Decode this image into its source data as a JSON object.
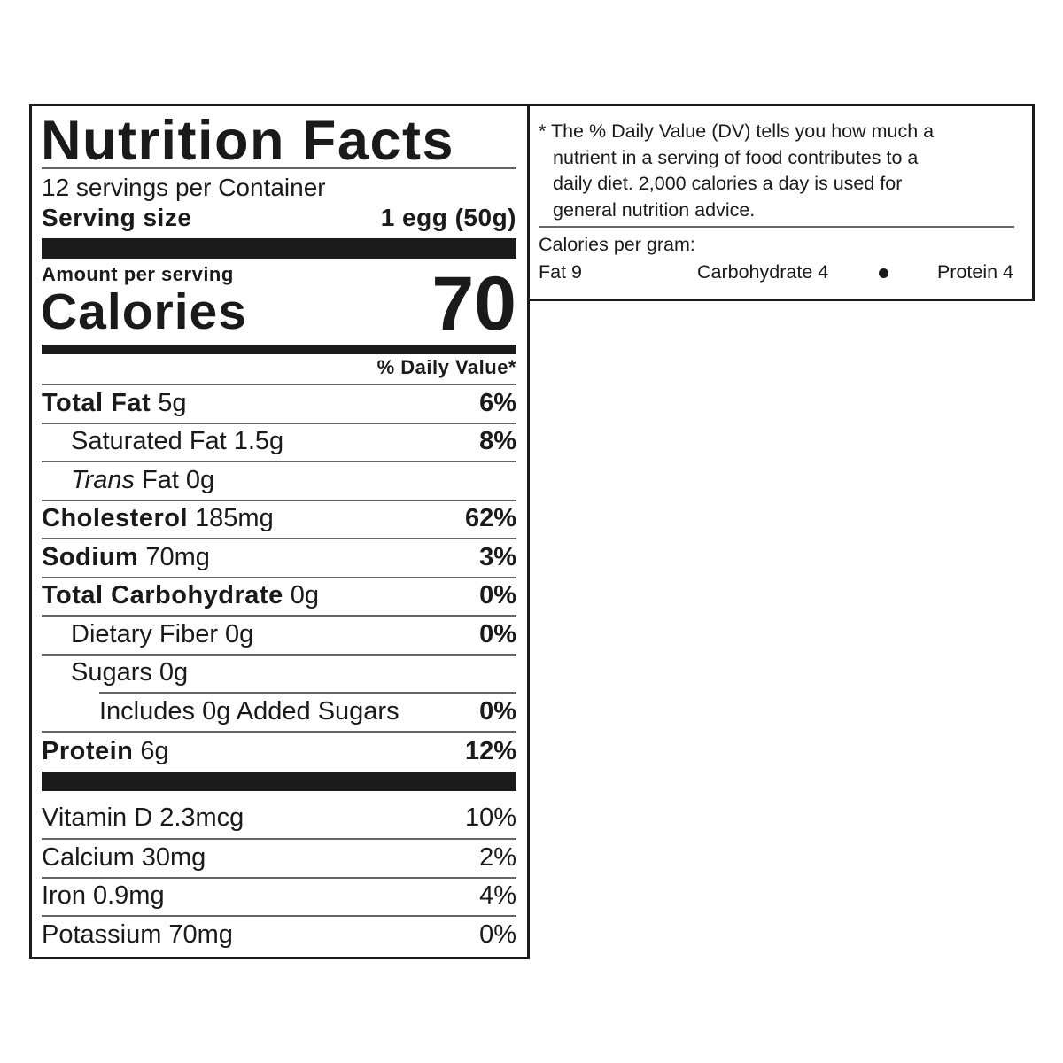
{
  "label": {
    "title": "Nutrition Facts",
    "servings_per_container": "12 servings per Container",
    "serving_size_label": "Serving size",
    "serving_size_value": "1 egg (50g)",
    "amount_per_serving": "Amount per serving",
    "calories_label": "Calories",
    "calories_value": "70",
    "daily_value_header": "% Daily Value*",
    "nutrients": [
      {
        "label": "Total Fat",
        "amount": "5g",
        "dv": "6%",
        "indent": 0
      },
      {
        "label": "",
        "prefix": "Saturated Fat",
        "amount": "1.5g",
        "dv": "8%",
        "indent": 1
      },
      {
        "label": "",
        "italic": "Trans",
        "prefix": "Fat",
        "amount": "0g",
        "dv": "",
        "indent": 1
      },
      {
        "label": "Cholesterol",
        "amount": "185mg",
        "dv": "62%",
        "indent": 0
      },
      {
        "label": "Sodium",
        "amount": "70mg",
        "dv": "3%",
        "indent": 0
      },
      {
        "label": "Total Carbohydrate",
        "amount": "0g",
        "dv": "0%",
        "indent": 0
      },
      {
        "label": "",
        "prefix": "Dietary Fiber",
        "amount": "0g",
        "dv": "0%",
        "indent": 1
      },
      {
        "label": "",
        "prefix": "Sugars",
        "amount": "0g",
        "dv": "",
        "indent": 1
      },
      {
        "label": "",
        "prefix": "Includes 0g Added Sugars",
        "amount": "",
        "dv": "0%",
        "indent": 2
      },
      {
        "label": "Protein",
        "amount": "6g",
        "dv": "12%",
        "indent": 0
      }
    ],
    "vitamins": [
      {
        "label": "Vitamin D",
        "amount": "2.3mcg",
        "dv": "10%"
      },
      {
        "label": "Calcium",
        "amount": "30mg",
        "dv": "2%"
      },
      {
        "label": "Iron",
        "amount": "0.9mg",
        "dv": "4%"
      },
      {
        "label": "Potassium",
        "amount": "70mg",
        "dv": "0%"
      }
    ]
  },
  "footnote": {
    "lines": [
      "* The % Daily Value (DV) tells you how much a",
      "nutrient in a serving of food contributes to a",
      "daily diet. 2,000 calories a day is used for",
      "general nutrition advice."
    ],
    "calories_per_gram_label": "Calories per gram:",
    "fat": "Fat 9",
    "carbohydrate": "Carbohydrate 4",
    "protein": "Protein 4",
    "bullet_icon": "bullet-dot"
  }
}
